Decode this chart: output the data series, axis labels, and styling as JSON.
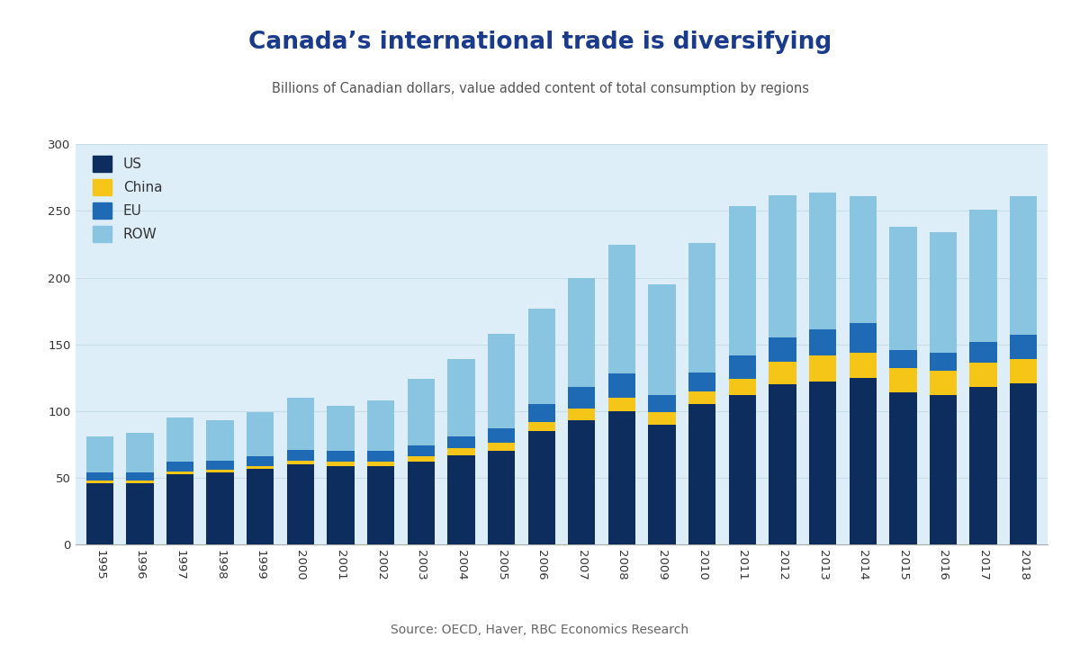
{
  "years": [
    1995,
    1996,
    1997,
    1998,
    1999,
    2000,
    2001,
    2002,
    2003,
    2004,
    2005,
    2006,
    2007,
    2008,
    2009,
    2010,
    2011,
    2012,
    2013,
    2014,
    2015,
    2016,
    2017,
    2018
  ],
  "US": [
    46,
    46,
    53,
    54,
    57,
    60,
    59,
    59,
    62,
    67,
    70,
    85,
    93,
    100,
    90,
    105,
    112,
    120,
    122,
    125,
    114,
    112,
    118,
    121
  ],
  "China": [
    2,
    2,
    2,
    2,
    2,
    3,
    3,
    3,
    4,
    5,
    6,
    7,
    9,
    10,
    9,
    10,
    12,
    17,
    20,
    19,
    18,
    18,
    18,
    18
  ],
  "EU": [
    6,
    6,
    7,
    7,
    7,
    8,
    8,
    8,
    8,
    9,
    11,
    13,
    16,
    18,
    13,
    14,
    18,
    18,
    19,
    22,
    14,
    14,
    16,
    18
  ],
  "ROW": [
    27,
    30,
    33,
    30,
    33,
    39,
    34,
    38,
    50,
    58,
    71,
    72,
    82,
    97,
    83,
    97,
    112,
    107,
    103,
    95,
    92,
    90,
    99,
    104
  ],
  "colors": {
    "US": "#0d2d5e",
    "China": "#f5c518",
    "EU": "#1f6ab5",
    "ROW": "#89c4e1"
  },
  "title": "Canada’s international trade is diversifying",
  "subtitle": "Billions of Canadian dollars, value added content of total consumption by regions",
  "source": "Source: OECD, Haver, RBC Economics Research",
  "ylim": [
    0,
    300
  ],
  "yticks": [
    0,
    50,
    100,
    150,
    200,
    250,
    300
  ],
  "figure_bg": "#ffffff",
  "plot_bg": "#ddeef8",
  "title_color": "#1a3a8c",
  "subtitle_color": "#555555",
  "source_color": "#666666",
  "grid_color": "#c8dce8"
}
